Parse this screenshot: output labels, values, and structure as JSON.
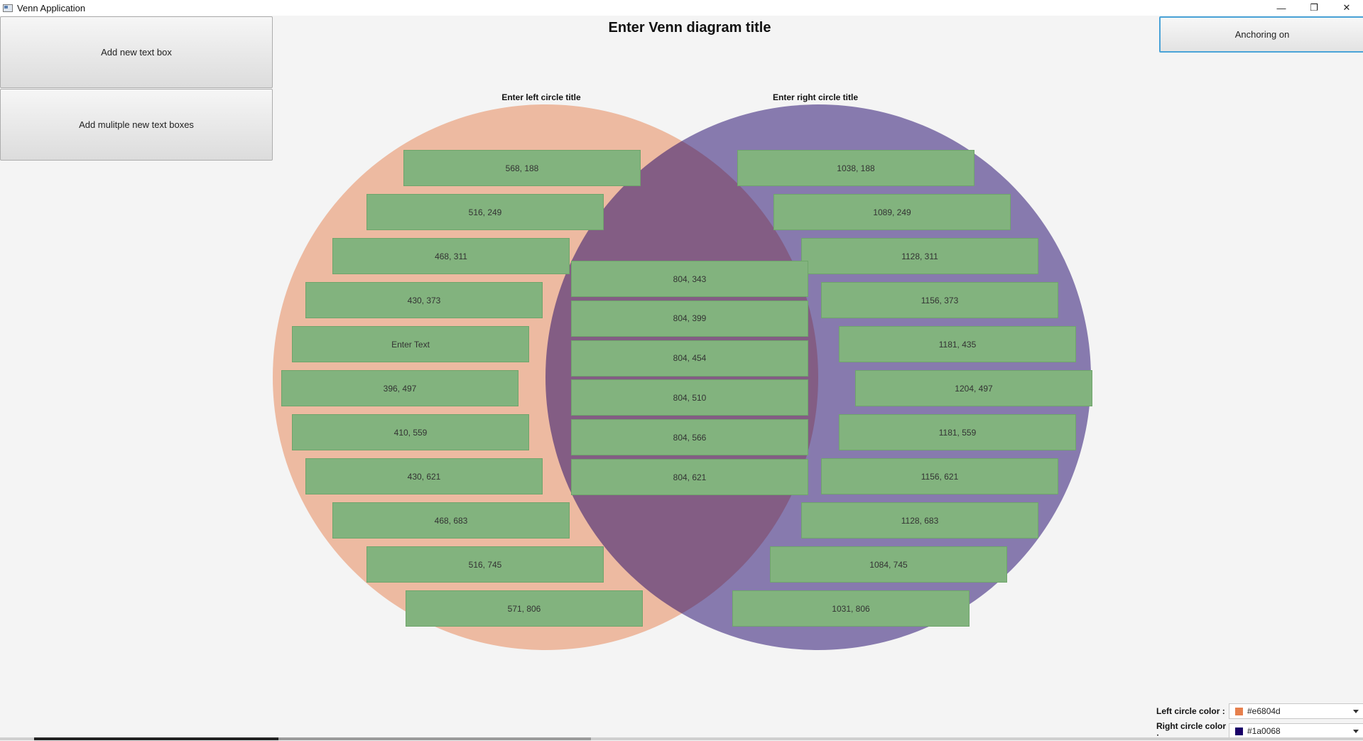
{
  "window": {
    "title": "Venn Application"
  },
  "buttons": {
    "add_text_box": "Add new text box",
    "add_multiple": "Add mulitple new text boxes",
    "anchoring": "Anchoring on"
  },
  "venn": {
    "title": "Enter Venn diagram title",
    "left_title": "Enter left circle title",
    "right_title": "Enter right circle title",
    "left_color": "#e6804d",
    "right_color": "#1a0068",
    "left_boxes": [
      "568, 188",
      "516, 249",
      "468, 311",
      "430, 373",
      "Enter Text",
      "396, 497",
      "410, 559",
      "430, 621",
      "468, 683",
      "516, 745",
      "571, 806"
    ],
    "center_boxes": [
      "804, 343",
      "804, 399",
      "804, 454",
      "804, 510",
      "804, 566",
      "804, 621"
    ],
    "right_boxes": [
      "1038, 188",
      "1089, 249",
      "1128, 311",
      "1156, 373",
      "1181, 435",
      "1204, 497",
      "1181, 559",
      "1156, 621",
      "1128, 683",
      "1084, 745",
      "1031, 806"
    ]
  },
  "color_controls": {
    "left_label": "Left circle color :",
    "left_value": "#e6804d",
    "right_label": "Right circle color :",
    "right_value": "#1a0068"
  }
}
